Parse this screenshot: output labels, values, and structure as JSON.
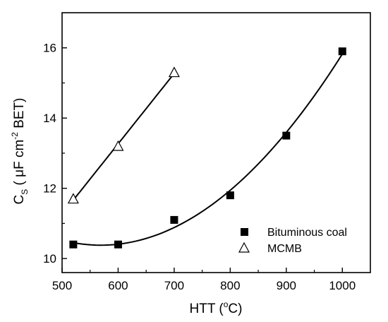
{
  "chart_data": {
    "type": "scatter",
    "title": "",
    "xlabel": {
      "main": "HTT (",
      "superscript": "o",
      "tail": "C)"
    },
    "ylabel": {
      "main": "C",
      "subscript": "S",
      "middle": " ( μF cm",
      "superscript": "-2",
      "tail": " BET)"
    },
    "xlim": [
      500,
      1050
    ],
    "ylim": [
      9.6,
      17.0
    ],
    "x_ticks": [
      500,
      600,
      700,
      800,
      900,
      1000
    ],
    "x_tick_labels": [
      "500",
      "600",
      "700",
      "800",
      "900",
      "1000"
    ],
    "y_ticks": [
      10,
      12,
      14,
      16
    ],
    "y_tick_labels": [
      "10",
      "12",
      "14",
      "16"
    ],
    "y_minor_ticks": [
      11,
      13,
      15
    ],
    "grid": false,
    "legend_position": "bottom-right",
    "series": [
      {
        "name": "Bituminous coal",
        "marker": "filled-square",
        "color": "#000000",
        "x": [
          520,
          600,
          700,
          800,
          900,
          1000
        ],
        "y": [
          10.4,
          10.4,
          11.1,
          11.8,
          13.5,
          15.9
        ],
        "fit": {
          "type": "quadratic",
          "x_range": [
            520,
            1000
          ]
        }
      },
      {
        "name": "MCMB",
        "marker": "open-triangle",
        "color": "#000000",
        "x": [
          520,
          600,
          700
        ],
        "y": [
          11.7,
          13.2,
          15.3
        ],
        "fit": {
          "type": "linear",
          "x_range": [
            520,
            700
          ]
        }
      }
    ]
  }
}
